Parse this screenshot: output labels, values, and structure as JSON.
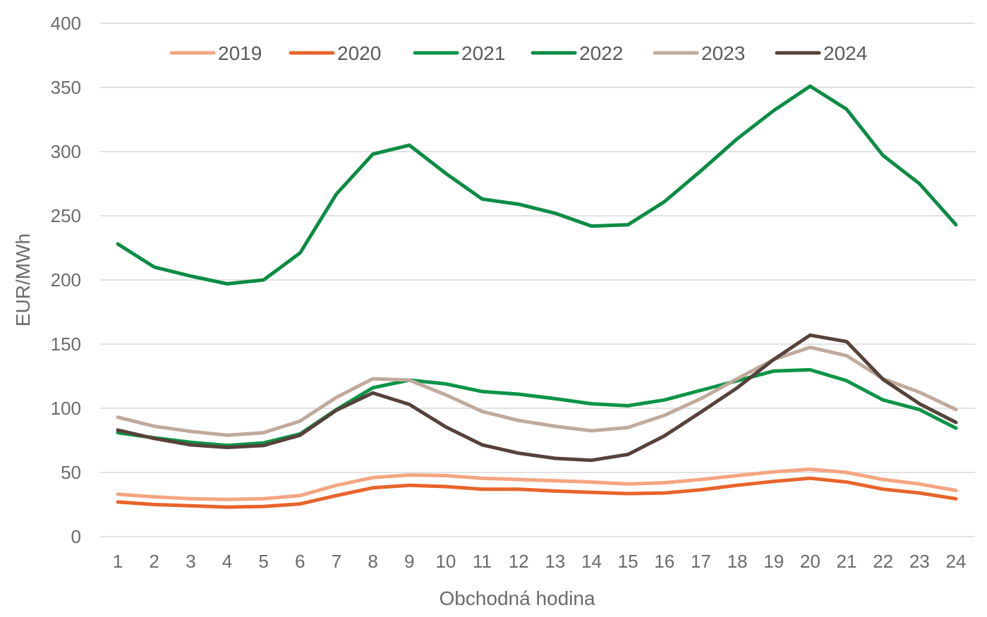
{
  "chart_data": {
    "type": "line",
    "title": "",
    "xlabel": "Obchodná hodina",
    "ylabel": "EUR/MWh",
    "ylim": [
      0,
      400
    ],
    "yticks": [
      0,
      50,
      100,
      150,
      200,
      250,
      300,
      350,
      400
    ],
    "grid": true,
    "legend_position": "top",
    "categories": [
      "1",
      "2",
      "3",
      "4",
      "5",
      "6",
      "7",
      "8",
      "9",
      "10",
      "11",
      "12",
      "13",
      "14",
      "15",
      "16",
      "17",
      "18",
      "19",
      "20",
      "21",
      "22",
      "23",
      "24"
    ],
    "series": [
      {
        "name": "2019",
        "color": "#f4a582",
        "values": [
          33,
          31,
          29.5,
          29,
          29.5,
          32,
          40,
          46,
          48,
          47.5,
          45.5,
          44.5,
          43.5,
          42.5,
          41,
          42,
          44.5,
          47.5,
          50.5,
          52.5,
          50,
          44.5,
          41,
          36
        ]
      },
      {
        "name": "2020",
        "color": "#e8642a",
        "values": [
          27,
          25,
          24,
          23,
          23.5,
          25.5,
          32,
          38,
          40,
          39,
          37,
          37,
          35.5,
          34.5,
          33.5,
          34,
          36.5,
          40,
          43,
          45.5,
          42.5,
          37,
          34,
          29.5
        ]
      },
      {
        "name": "2021",
        "color": "#0a9447",
        "values": [
          81,
          77,
          73.5,
          71,
          73,
          80,
          99,
          116,
          122,
          119,
          113,
          111,
          107.5,
          103.5,
          102,
          106.5,
          114,
          121.5,
          129,
          130,
          121.5,
          106.5,
          99,
          84.5
        ]
      },
      {
        "name": "2022",
        "color": "#0a8c44",
        "values": [
          228,
          210,
          203,
          197,
          200,
          221,
          267,
          298,
          305,
          283,
          263,
          259,
          252,
          242,
          243,
          261,
          285,
          310,
          332,
          351,
          333,
          297,
          275,
          243
        ]
      },
      {
        "name": "2023",
        "color": "#bfaa9b",
        "values": [
          93,
          86,
          82,
          79,
          81,
          90,
          108.5,
          123,
          122,
          110.5,
          97.5,
          90.5,
          86,
          82.5,
          85,
          94.5,
          107.5,
          123,
          138,
          147.5,
          141,
          123,
          112.5,
          99
        ]
      },
      {
        "name": "2024",
        "color": "#56423a",
        "values": [
          83,
          76.5,
          71.5,
          69.5,
          71,
          79,
          98.5,
          112,
          103,
          85.5,
          71.5,
          65,
          61,
          59.5,
          64,
          78.5,
          97,
          116,
          138,
          157,
          152,
          122.5,
          103.5,
          89
        ]
      }
    ]
  }
}
